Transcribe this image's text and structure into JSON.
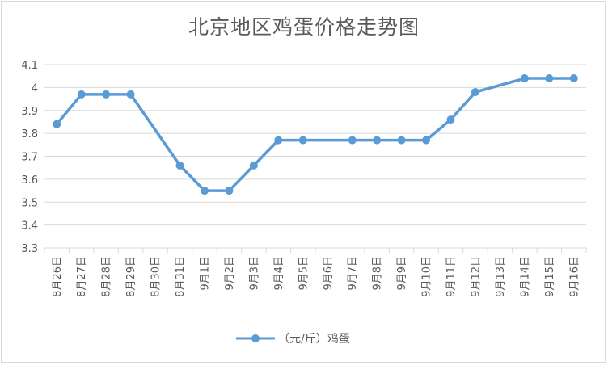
{
  "chart_data": {
    "type": "line",
    "title": "北京地区鸡蛋价格走势图",
    "categories": [
      "8月26日",
      "8月27日",
      "8月28日",
      "8月29日",
      "8月30日",
      "8月31日",
      "9月1日",
      "9月2日",
      "9月3日",
      "9月4日",
      "9月5日",
      "9月6日",
      "9月7日",
      "9月8日",
      "9月9日",
      "9月10日",
      "9月11日",
      "9月12日",
      "9月13日",
      "9月14日",
      "9月15日",
      "9月16日"
    ],
    "series": [
      {
        "name": "（元/斤）鸡蛋",
        "values": [
          3.84,
          3.97,
          3.97,
          3.97,
          null,
          3.66,
          3.55,
          3.55,
          3.66,
          3.77,
          3.77,
          null,
          3.77,
          3.77,
          3.77,
          3.77,
          3.86,
          3.98,
          null,
          4.04,
          4.04,
          4.04
        ]
      }
    ],
    "yticks": [
      "3.3",
      "3.4",
      "3.5",
      "3.6",
      "3.7",
      "3.8",
      "3.9",
      "4",
      "4.1"
    ],
    "ylim": [
      3.3,
      4.1
    ],
    "grid": true,
    "legend": "bottom",
    "color": "#5b9bd5",
    "grid_color": "#d9d9d9"
  }
}
